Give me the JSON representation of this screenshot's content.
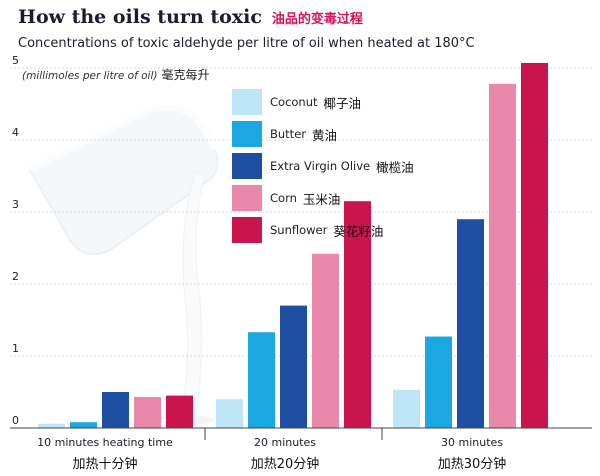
{
  "header": {
    "title_en": "How the oils turn toxic",
    "title_zh": "油品的变毒过程",
    "subtitle": "Concentrations of toxic aldehyde per litre of oil when heated at 180°C",
    "unit_en": "(millimoles per litre of oil)",
    "unit_zh": "毫克每升"
  },
  "chart_data": {
    "type": "bar",
    "title": "How the oils turn toxic",
    "subtitle": "Concentrations of toxic aldehyde per litre of oil when heated at 180°C",
    "ylabel": "(millimoles per litre of oil)",
    "ylim": [
      0,
      5
    ],
    "yticks": [
      "0",
      "1",
      "2",
      "3",
      "4",
      "5"
    ],
    "grid": true,
    "legend_position": "top-left inside plot",
    "categories": [
      {
        "label_en": "10 minutes heating time",
        "label_zh": "加热十分钟"
      },
      {
        "label_en": "20 minutes",
        "label_zh": "加热20分钟"
      },
      {
        "label_en": "30 minutes",
        "label_zh": "加热30分钟"
      }
    ],
    "series": [
      {
        "name": "Coconut",
        "name_zh": "椰子油",
        "color": "#bfe6f7",
        "values": [
          0.06,
          0.4,
          0.53
        ]
      },
      {
        "name": "Butter",
        "name_zh": "黄油",
        "color": "#1ba8e0",
        "values": [
          0.08,
          1.33,
          1.27
        ]
      },
      {
        "name": "Extra Virgin Olive",
        "name_zh": "橄榄油",
        "color": "#1e4fa3",
        "values": [
          0.5,
          1.7,
          2.9
        ]
      },
      {
        "name": "Corn",
        "name_zh": "玉米油",
        "color": "#ea88ac",
        "values": [
          0.43,
          2.42,
          4.78
        ]
      },
      {
        "name": "Sunflower",
        "name_zh": "葵花籽油",
        "color": "#c8154e",
        "values": [
          0.45,
          3.15,
          5.07
        ]
      }
    ]
  }
}
